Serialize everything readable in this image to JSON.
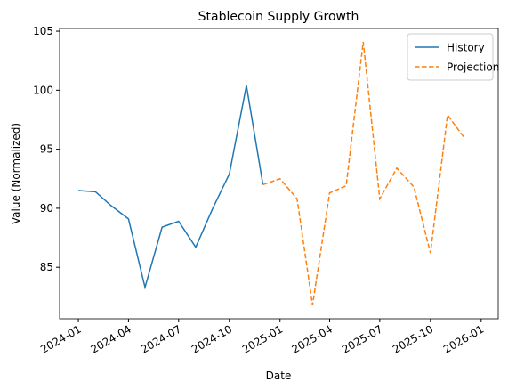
{
  "chart_data": {
    "type": "line",
    "title": "Stablecoin Supply Growth",
    "x_label": "Date",
    "y_label": "Value (Normalized)",
    "x": [
      "2024-01",
      "2024-02",
      "2024-03",
      "2024-04",
      "2024-05",
      "2024-06",
      "2024-07",
      "2024-08",
      "2024-09",
      "2024-10",
      "2024-11",
      "2024-12",
      "2025-01",
      "2025-02",
      "2025-03",
      "2025-04",
      "2025-05",
      "2025-06",
      "2025-07",
      "2025-08",
      "2025-09",
      "2025-10",
      "2025-11",
      "2025-12"
    ],
    "series": [
      {
        "name": "History",
        "color": "#1f77b4",
        "dash": "solid",
        "values": [
          91.5,
          91.4,
          90.2,
          89.1,
          83.3,
          88.4,
          88.9,
          86.7,
          90.0,
          92.9,
          100.4,
          92.0,
          null,
          null,
          null,
          null,
          null,
          null,
          null,
          null,
          null,
          null,
          null,
          null
        ]
      },
      {
        "name": "Projection",
        "color": "#ff7f0e",
        "dash": "dashed",
        "values": [
          null,
          null,
          null,
          null,
          null,
          null,
          null,
          null,
          null,
          null,
          null,
          92.0,
          92.5,
          90.8,
          81.8,
          91.3,
          91.9,
          104.1,
          90.8,
          93.4,
          91.8,
          86.2,
          97.9,
          96.0
        ]
      }
    ],
    "xlim": [
      "2023-11-28",
      "2026-02-01"
    ],
    "xticks": [
      "2024-01",
      "2024-04",
      "2024-07",
      "2024-10",
      "2025-01",
      "2025-04",
      "2025-07",
      "2025-10",
      "2026-01"
    ],
    "ylim": [
      80.64,
      105.23
    ],
    "yticks": [
      85,
      90,
      95,
      100,
      105
    ],
    "legend": "upper right",
    "grid": false
  }
}
